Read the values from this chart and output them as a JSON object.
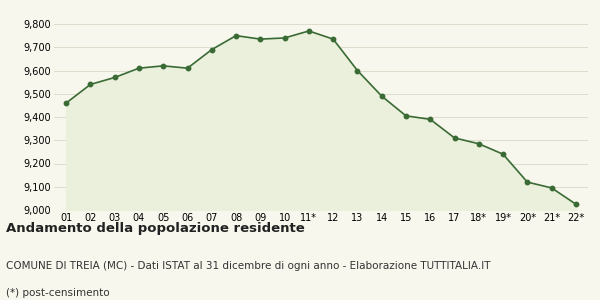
{
  "x_labels": [
    "01",
    "02",
    "03",
    "04",
    "05",
    "06",
    "07",
    "08",
    "09",
    "10",
    "11*",
    "12",
    "13",
    "14",
    "15",
    "16",
    "17",
    "18*",
    "19*",
    "20*",
    "21*",
    "22*"
  ],
  "y_values": [
    9460,
    9540,
    9570,
    9610,
    9620,
    9610,
    9690,
    9750,
    9735,
    9740,
    9770,
    9735,
    9600,
    9490,
    9405,
    9390,
    9310,
    9285,
    9240,
    9120,
    9095,
    9025
  ],
  "ylim": [
    9000,
    9800
  ],
  "yticks": [
    9000,
    9100,
    9200,
    9300,
    9400,
    9500,
    9600,
    9700,
    9800
  ],
  "line_color": "#3a6b35",
  "fill_color": "#eaf0dc",
  "marker_color": "#3a6b35",
  "bg_color": "#f7f7ee",
  "grid_color": "#d8d8c8",
  "title": "Andamento della popolazione residente",
  "subtitle": "COMUNE DI TREIA (MC) - Dati ISTAT al 31 dicembre di ogni anno - Elaborazione TUTTITALIA.IT",
  "footnote": "(*) post-censimento",
  "title_fontsize": 9.5,
  "subtitle_fontsize": 7.5,
  "footnote_fontsize": 7.5,
  "tick_fontsize": 7.0
}
